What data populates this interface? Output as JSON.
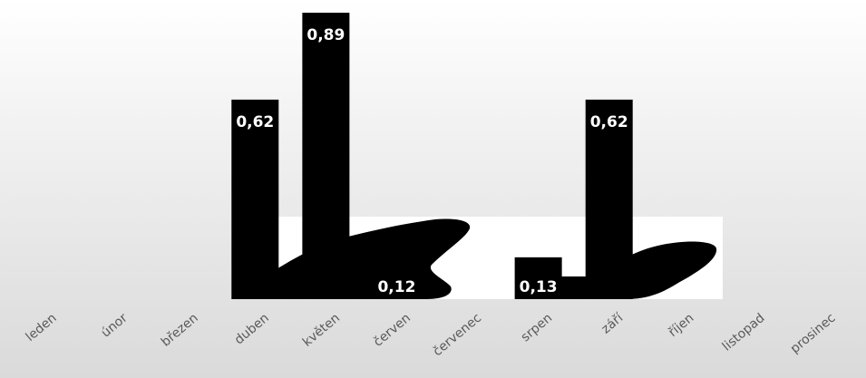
{
  "chart_data": {
    "type": "bar",
    "categories": [
      "leden",
      "únor",
      "březen",
      "duben",
      "květen",
      "červen",
      "červenec",
      "srpen",
      "září",
      "říjen",
      "listopad",
      "prosinec"
    ],
    "values": [
      0,
      0,
      0,
      0.62,
      0.89,
      0.12,
      0,
      0.13,
      0.62,
      0,
      0,
      0
    ],
    "value_labels": [
      "",
      "",
      "",
      "0,62",
      "0,89",
      "0,12",
      "",
      "0,13",
      "0,62",
      "",
      "",
      ""
    ],
    "ylim": [
      0,
      1
    ],
    "grid": false,
    "legend": "none",
    "title": "",
    "xlabel": "",
    "ylabel": "",
    "colors": {
      "bar": "#000000",
      "value_label": "#ffffff",
      "category_label": "#595959",
      "background_top": "#ffffff",
      "background_bottom": "#dadada"
    }
  }
}
